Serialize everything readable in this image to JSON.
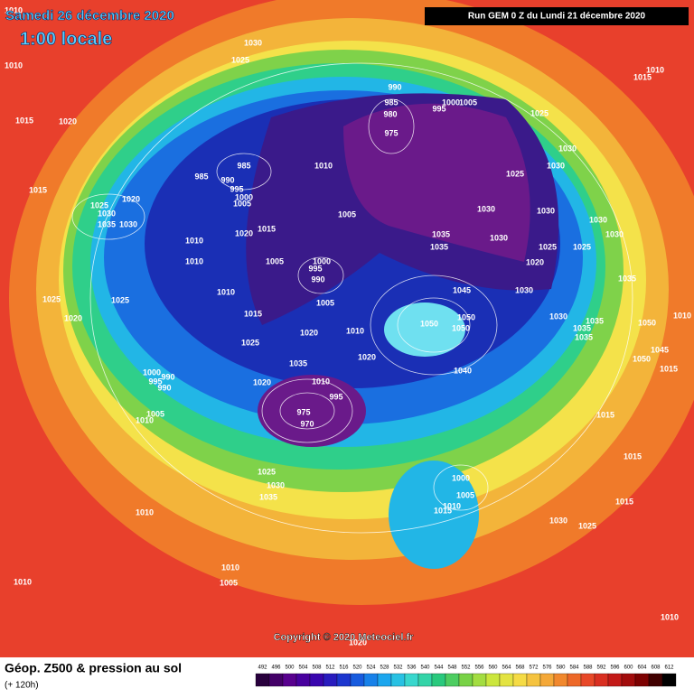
{
  "header": {
    "date": "Samedi 26 décembre 2020",
    "time": "1:00 locale",
    "run": "Run GEM 0 Z du Lundi 21 décembre 2020"
  },
  "copyright": "Copyright © 2020 Meteociel.fr",
  "footer": {
    "title": "Géop. Z500 & pression au sol",
    "lead": "(+ 120h)"
  },
  "scale_ticks": [
    492,
    496,
    500,
    504,
    508,
    512,
    516,
    520,
    524,
    528,
    532,
    536,
    540,
    544,
    548,
    552,
    556,
    560,
    564,
    568,
    572,
    576,
    580,
    584,
    588,
    592,
    596,
    600,
    604,
    608,
    612
  ],
  "pressure_labels": [
    1010,
    1010,
    1030,
    1025,
    1015,
    1020,
    990,
    985,
    980,
    1005,
    1000,
    995,
    975,
    985,
    985,
    990,
    995,
    1000,
    1005,
    1010,
    1015,
    1020,
    1025,
    1030,
    1035,
    1030,
    1005,
    1030,
    1030,
    1025,
    1030,
    1030,
    1025,
    1015,
    1010,
    1030,
    1030,
    1025,
    1025,
    1020,
    1035,
    1035,
    1030,
    1010,
    1020,
    1015,
    1010,
    1005,
    1000,
    995,
    990,
    1010,
    1005,
    1025,
    1025,
    1020,
    1015,
    1045,
    1030,
    1035,
    1050,
    1050,
    1050,
    1030,
    1035,
    1035,
    1035,
    1020,
    1010,
    1025,
    1035,
    1020,
    1010,
    995,
    975,
    970,
    1000,
    995,
    990,
    990,
    1020,
    1040,
    1005,
    1010,
    1015,
    1015,
    1015,
    1025,
    1030,
    1035,
    1000,
    1005,
    1010,
    1015,
    1030,
    1025,
    1010,
    1010,
    1005,
    1010,
    1010,
    1020,
    1050,
    1045,
    1050,
    1015,
    1010
  ]
}
